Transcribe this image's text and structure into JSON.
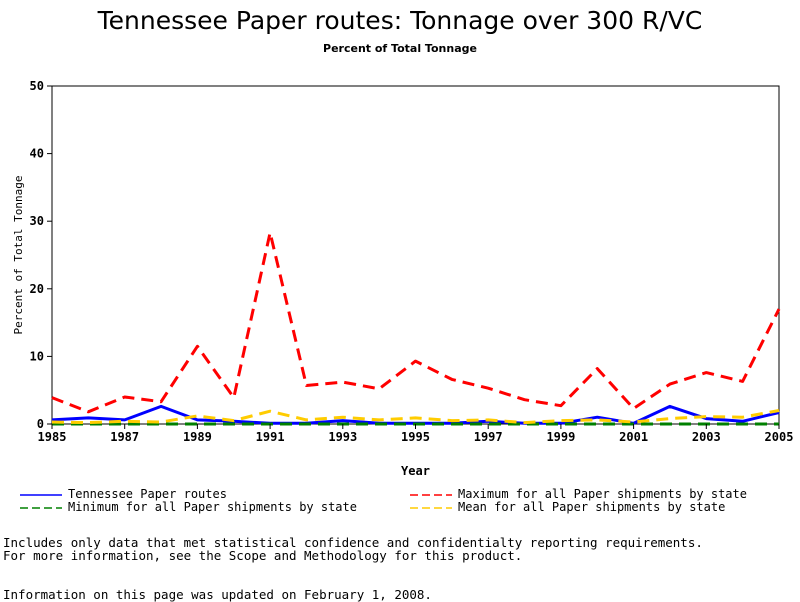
{
  "page": {
    "title": "Tennessee Paper routes: Tonnage over 300 R/VC",
    "subtitle": "Percent of Total Tonnage",
    "notes": [
      "Includes only data that met statistical confidence and confidentialty reporting requirements.",
      "For more information, see the Scope and Methodology for this product."
    ],
    "updated": "Information on this page was updated on February 1, 2008."
  },
  "chart_data": {
    "type": "line",
    "title": "Tennessee Paper routes: Tonnage over 300 R/VC",
    "subtitle": "Percent of Total Tonnage",
    "xlabel": "Year",
    "ylabel": "Percent of Total Tonnage",
    "xlim": [
      1985,
      2005
    ],
    "ylim": [
      0,
      50
    ],
    "xticks": [
      1985,
      1987,
      1989,
      1991,
      1993,
      1995,
      1997,
      1999,
      2001,
      2003,
      2005
    ],
    "yticks": [
      0,
      10,
      20,
      30,
      40,
      50
    ],
    "grid": false,
    "legend_position": "bottom",
    "x": [
      1985,
      1986,
      1987,
      1988,
      1989,
      1990,
      1991,
      1992,
      1993,
      1994,
      1995,
      1996,
      1997,
      1998,
      1999,
      2000,
      2001,
      2002,
      2003,
      2004,
      2005
    ],
    "series": [
      {
        "name": "Tennessee Paper routes",
        "color": "#0000ff",
        "dash": "solid",
        "values": [
          0.6,
          0.9,
          0.6,
          2.6,
          0.6,
          0.4,
          0.1,
          0.1,
          0.5,
          0.1,
          0.1,
          0.1,
          0.4,
          0.1,
          0.1,
          1.0,
          0.1,
          2.6,
          0.8,
          0.4,
          1.7
        ]
      },
      {
        "name": "Maximum for all Paper shipments by state",
        "color": "#ff0000",
        "dash": "dashed",
        "values": [
          3.9,
          1.8,
          4.0,
          3.3,
          11.5,
          3.9,
          28.3,
          5.7,
          6.2,
          5.2,
          9.3,
          6.6,
          5.3,
          3.6,
          2.7,
          8.2,
          2.3,
          5.9,
          7.6,
          6.3,
          17.0
        ]
      },
      {
        "name": "Minimum for all Paper shipments by state",
        "color": "#008000",
        "dash": "dashed",
        "values": [
          0.0,
          0.0,
          0.0,
          0.0,
          0.0,
          0.0,
          0.0,
          0.0,
          0.0,
          0.0,
          0.0,
          0.0,
          0.0,
          0.0,
          0.0,
          0.0,
          0.0,
          0.0,
          0.0,
          0.0,
          0.0
        ]
      },
      {
        "name": "Mean for all Paper shipments by state",
        "color": "#ffcc00",
        "dash": "dashed",
        "values": [
          0.3,
          0.2,
          0.4,
          0.3,
          1.2,
          0.5,
          1.9,
          0.6,
          1.0,
          0.6,
          0.9,
          0.5,
          0.6,
          0.2,
          0.5,
          0.6,
          0.3,
          0.8,
          1.1,
          1.0,
          2.0
        ]
      }
    ]
  }
}
